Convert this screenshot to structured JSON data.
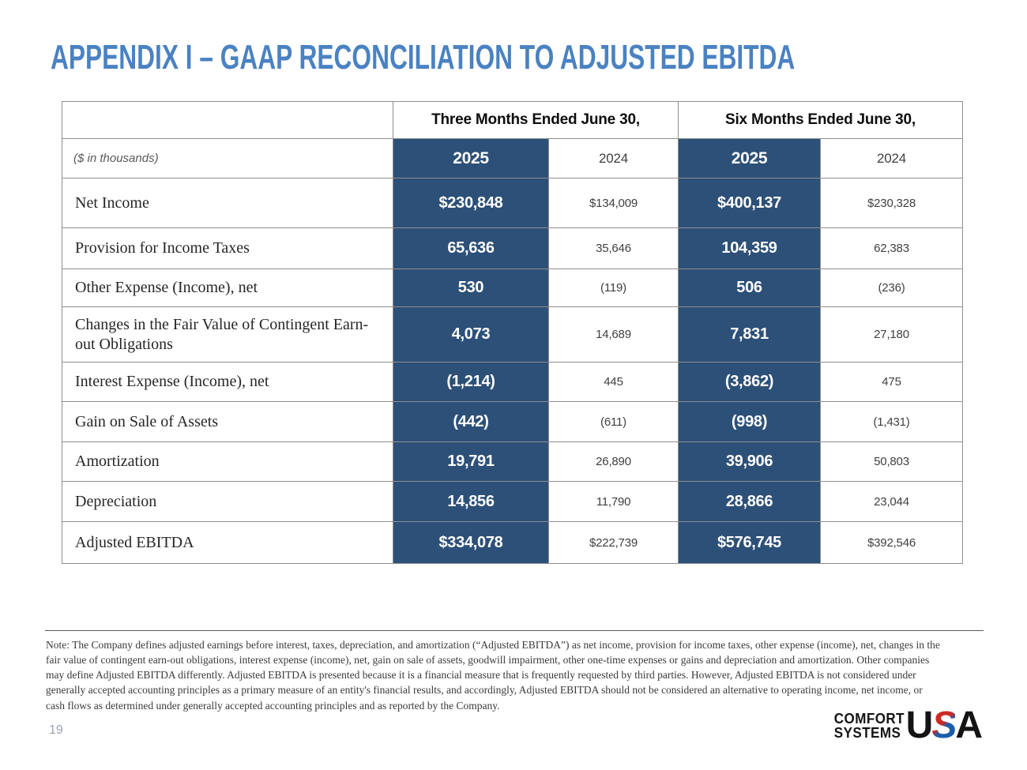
{
  "slide": {
    "title": "APPENDIX I – GAAP RECONCILIATION TO ADJUSTED EBITDA",
    "page_number": "19"
  },
  "table": {
    "units_label": "($ in thousands)",
    "groups": [
      "Three Months Ended June 30,",
      "Six Months Ended June 30,"
    ],
    "years": [
      "2025",
      "2024",
      "2025",
      "2024"
    ],
    "rows": [
      {
        "label": "Net Income",
        "values": [
          "$230,848",
          "$134,009",
          "$400,137",
          "$230,328"
        ]
      },
      {
        "label": "Provision for Income Taxes",
        "values": [
          "65,636",
          "35,646",
          "104,359",
          "62,383"
        ]
      },
      {
        "label": "Other Expense (Income), net",
        "values": [
          "530",
          "(119)",
          "506",
          "(236)"
        ]
      },
      {
        "label": "Changes in the Fair Value of Contingent Earn-out Obligations",
        "values": [
          "4,073",
          "14,689",
          "7,831",
          "27,180"
        ]
      },
      {
        "label": "Interest Expense (Income), net",
        "values": [
          "(1,214)",
          "445",
          "(3,862)",
          "475"
        ]
      },
      {
        "label": "Gain on Sale of Assets",
        "values": [
          "(442)",
          "(611)",
          "(998)",
          "(1,431)"
        ]
      },
      {
        "label": "Amortization",
        "values": [
          "19,791",
          "26,890",
          "39,906",
          "50,803"
        ]
      },
      {
        "label": "Depreciation",
        "values": [
          "14,856",
          "11,790",
          "28,866",
          "23,044"
        ]
      },
      {
        "label": "Adjusted EBITDA",
        "values": [
          "$334,078",
          "$222,739",
          "$576,745",
          "$392,546"
        ]
      }
    ]
  },
  "note": {
    "text": "Note:  The Company defines adjusted earnings before interest, taxes, depreciation, and amortization (“Adjusted EBITDA”) as net income, provision for income taxes, other expense (income), net, changes in the fair value of contingent earn-out obligations, interest expense (income), net, gain on sale of assets, goodwill impairment, other one-time expenses or gains and depreciation and amortization.  Other companies may define Adjusted EBITDA differently.  Adjusted EBITDA is presented because it is a financial measure that is frequently requested by third parties.  However, Adjusted EBITDA is not considered under generally accepted accounting principles as a primary measure of an entity's financial results, and accordingly, Adjusted EBITDA should not be considered an alternative to operating income, net income, or cash flows as determined under generally accepted accounting principles and as reported by the Company."
  },
  "footer": {
    "logo_line1": "COMFORT",
    "logo_line2": "SYSTEMS",
    "logo_usa_u": "U",
    "logo_usa_s": "S",
    "logo_usa_a": "A"
  },
  "colors": {
    "accent_blue": "#2d5078",
    "title_blue": "#4a82c2",
    "logo_red": "#cc2c26",
    "logo_blue": "#1a5dab",
    "gridline_gray": "#8f8f8f"
  }
}
